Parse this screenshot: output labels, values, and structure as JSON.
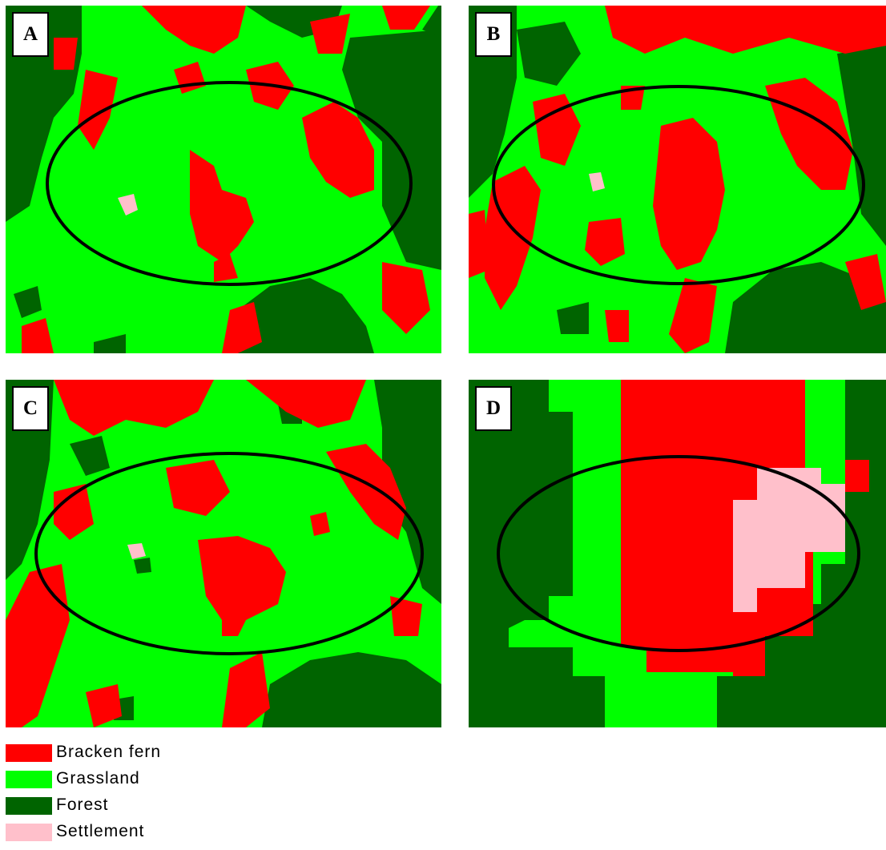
{
  "colors": {
    "bracken_fern": "#ff0000",
    "grassland": "#00ff00",
    "forest": "#006400",
    "settlement": "#ffc0cb",
    "ellipse": "#000000"
  },
  "panels": [
    {
      "id": "a",
      "label": "A"
    },
    {
      "id": "b",
      "label": "B"
    },
    {
      "id": "c",
      "label": "C"
    },
    {
      "id": "d",
      "label": "D"
    }
  ],
  "legend": [
    {
      "label": "Bracken fern",
      "color_key": "bracken_fern"
    },
    {
      "label": "Grassland",
      "color_key": "grassland"
    },
    {
      "label": "Forest",
      "color_key": "forest"
    },
    {
      "label": "Settlement",
      "color_key": "settlement"
    }
  ]
}
